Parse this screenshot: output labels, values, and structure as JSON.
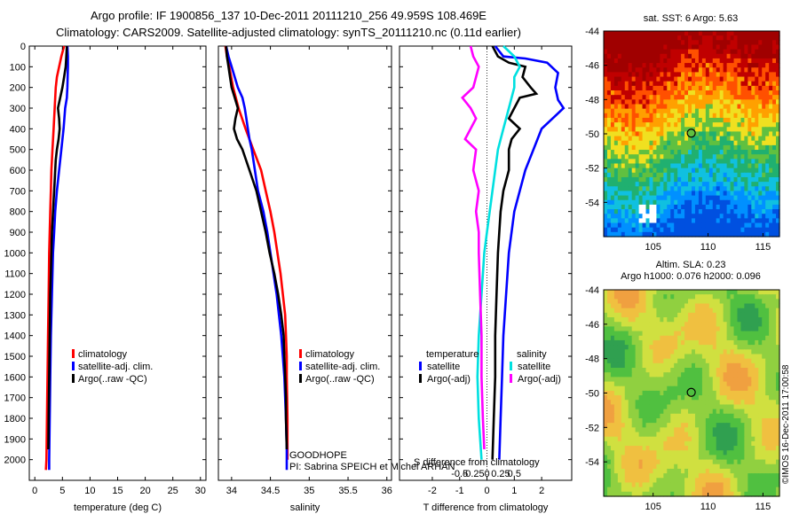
{
  "header": {
    "line1": "Argo profile: IF 1900856_137 10-Dec-2011 20111210_256 49.959S 108.469E",
    "line2": "Climatology: CARS2009. Satellite-adjusted climatology: synTS_20111210.nc (0.11d earlier)"
  },
  "chart_data": [
    {
      "id": "temperature",
      "type": "line",
      "xlabel": "temperature (deg C)",
      "ylabel": "",
      "xlim": [
        -1,
        31
      ],
      "ylim": [
        2100,
        0
      ],
      "y_reversed": true,
      "xticks": [
        0,
        5,
        10,
        15,
        20,
        25,
        30
      ],
      "yticks": [
        0,
        100,
        200,
        300,
        400,
        500,
        600,
        700,
        800,
        900,
        1000,
        1100,
        1200,
        1300,
        1400,
        1500,
        1600,
        1700,
        1800,
        1900,
        2000
      ],
      "legend": [
        "climatology",
        "satellite-adj. clim.",
        "Argo(..raw -QC)"
      ],
      "series": [
        {
          "name": "climatology",
          "color": "#ff0000",
          "points": [
            [
              5.3,
              0
            ],
            [
              4.8,
              50
            ],
            [
              4.4,
              100
            ],
            [
              4.0,
              150
            ],
            [
              3.8,
              200
            ],
            [
              3.6,
              300
            ],
            [
              3.4,
              400
            ],
            [
              3.2,
              500
            ],
            [
              3.0,
              600
            ],
            [
              2.9,
              700
            ],
            [
              2.8,
              800
            ],
            [
              2.7,
              900
            ],
            [
              2.6,
              1000
            ],
            [
              2.5,
              1200
            ],
            [
              2.4,
              1400
            ],
            [
              2.3,
              1600
            ],
            [
              2.2,
              1800
            ],
            [
              2.1,
              2000
            ],
            [
              2.0,
              2050
            ]
          ]
        },
        {
          "name": "satellite-adj. clim.",
          "color": "#0000ff",
          "points": [
            [
              5.9,
              0
            ],
            [
              6.0,
              50
            ],
            [
              6.0,
              100
            ],
            [
              5.9,
              200
            ],
            [
              5.8,
              250
            ],
            [
              5.5,
              300
            ],
            [
              5.2,
              400
            ],
            [
              4.8,
              500
            ],
            [
              4.4,
              600
            ],
            [
              4.0,
              700
            ],
            [
              3.7,
              800
            ],
            [
              3.5,
              900
            ],
            [
              3.3,
              1000
            ],
            [
              3.1,
              1200
            ],
            [
              2.9,
              1400
            ],
            [
              2.8,
              1600
            ],
            [
              2.7,
              1800
            ],
            [
              2.6,
              2000
            ],
            [
              2.6,
              2050
            ]
          ]
        },
        {
          "name": "Argo(..raw -QC)",
          "color": "#000000",
          "points": [
            [
              5.8,
              0
            ],
            [
              5.7,
              50
            ],
            [
              5.6,
              100
            ],
            [
              5.3,
              150
            ],
            [
              5.0,
              200
            ],
            [
              4.6,
              250
            ],
            [
              4.2,
              300
            ],
            [
              4.4,
              350
            ],
            [
              4.5,
              400
            ],
            [
              4.3,
              450
            ],
            [
              4.0,
              500
            ],
            [
              3.8,
              550
            ],
            [
              3.7,
              600
            ],
            [
              3.5,
              700
            ],
            [
              3.3,
              800
            ],
            [
              3.1,
              900
            ],
            [
              3.0,
              1000
            ],
            [
              2.9,
              1100
            ],
            [
              2.8,
              1200
            ],
            [
              2.7,
              1400
            ],
            [
              2.6,
              1600
            ],
            [
              2.5,
              1800
            ],
            [
              2.45,
              1950
            ]
          ]
        }
      ]
    },
    {
      "id": "salinity",
      "type": "line",
      "xlabel": "salinity",
      "ylabel": "",
      "xlim": [
        33.83,
        36.06
      ],
      "ylim": [
        2100,
        0
      ],
      "y_reversed": true,
      "xticks": [
        34,
        34.5,
        35,
        35.5,
        36
      ],
      "legend": [
        "climatology",
        "satellite-adj. clim.",
        "Argo(..raw -QC)"
      ],
      "series": [
        {
          "name": "climatology",
          "color": "#ff0000",
          "points": [
            [
              33.92,
              0
            ],
            [
              33.94,
              50
            ],
            [
              33.97,
              100
            ],
            [
              34.02,
              200
            ],
            [
              34.09,
              300
            ],
            [
              34.18,
              400
            ],
            [
              34.28,
              500
            ],
            [
              34.38,
              600
            ],
            [
              34.44,
              700
            ],
            [
              34.5,
              800
            ],
            [
              34.55,
              900
            ],
            [
              34.59,
              1000
            ],
            [
              34.63,
              1100
            ],
            [
              34.66,
              1200
            ],
            [
              34.69,
              1300
            ],
            [
              34.7,
              1400
            ],
            [
              34.71,
              1500
            ],
            [
              34.71,
              1600
            ],
            [
              34.72,
              1800
            ],
            [
              34.72,
              2000
            ]
          ]
        },
        {
          "name": "satellite-adj. clim.",
          "color": "#0000ff",
          "points": [
            [
              33.93,
              0
            ],
            [
              33.96,
              50
            ],
            [
              34.0,
              100
            ],
            [
              34.04,
              150
            ],
            [
              34.08,
              200
            ],
            [
              34.14,
              250
            ],
            [
              34.17,
              300
            ],
            [
              34.19,
              350
            ],
            [
              34.21,
              400
            ],
            [
              34.23,
              450
            ],
            [
              34.26,
              500
            ],
            [
              34.3,
              600
            ],
            [
              34.34,
              700
            ],
            [
              34.41,
              800
            ],
            [
              34.46,
              900
            ],
            [
              34.5,
              1000
            ],
            [
              34.54,
              1100
            ],
            [
              34.58,
              1200
            ],
            [
              34.61,
              1300
            ],
            [
              34.64,
              1400
            ],
            [
              34.66,
              1500
            ],
            [
              34.68,
              1600
            ],
            [
              34.69,
              1700
            ],
            [
              34.7,
              1800
            ],
            [
              34.71,
              1950
            ],
            [
              34.71,
              2050
            ]
          ]
        },
        {
          "name": "Argo(..raw -QC)",
          "color": "#000000",
          "points": [
            [
              33.93,
              0
            ],
            [
              33.94,
              50
            ],
            [
              33.96,
              100
            ],
            [
              33.98,
              150
            ],
            [
              34.0,
              200
            ],
            [
              34.04,
              250
            ],
            [
              34.08,
              300
            ],
            [
              34.05,
              350
            ],
            [
              34.03,
              400
            ],
            [
              34.07,
              450
            ],
            [
              34.14,
              500
            ],
            [
              34.23,
              600
            ],
            [
              34.32,
              700
            ],
            [
              34.38,
              800
            ],
            [
              34.44,
              900
            ],
            [
              34.49,
              1000
            ],
            [
              34.55,
              1100
            ],
            [
              34.6,
              1200
            ],
            [
              34.64,
              1300
            ],
            [
              34.67,
              1400
            ],
            [
              34.68,
              1500
            ],
            [
              34.69,
              1600
            ],
            [
              34.7,
              1700
            ],
            [
              34.7,
              1800
            ],
            [
              34.71,
              1950
            ]
          ]
        }
      ],
      "annotations": [
        "GOODHOPE",
        "PI: Sabrina SPEICH et Michel ARHAN"
      ]
    },
    {
      "id": "difference",
      "type": "line",
      "xlabel": "T difference from climatology",
      "x2label": "S difference from climatology",
      "xlim": [
        -3.2,
        3.1
      ],
      "ylim": [
        2100,
        0
      ],
      "y_reversed": true,
      "xticks": [
        -2,
        -1,
        0,
        1,
        2
      ],
      "x2ticks": [
        "-0.5",
        "-0.25",
        "0",
        "0.25",
        "0.5"
      ],
      "legend_headers": [
        "temperature",
        "salinity"
      ],
      "legend": [
        "satellite",
        "Argo(-adj)",
        "satellite",
        "Argo(-adj)"
      ],
      "series": [
        {
          "name": "satellite",
          "group": "temperature",
          "color": "#0000ff",
          "points": [
            [
              0.3,
              0
            ],
            [
              0.6,
              50
            ],
            [
              1.4,
              60
            ],
            [
              2.2,
              80
            ],
            [
              2.6,
              130
            ],
            [
              2.5,
              200
            ],
            [
              2.6,
              260
            ],
            [
              2.8,
              300
            ],
            [
              2.4,
              350
            ],
            [
              2.0,
              400
            ],
            [
              1.7,
              500
            ],
            [
              1.4,
              600
            ],
            [
              1.2,
              700
            ],
            [
              1.0,
              800
            ],
            [
              0.8,
              1000
            ],
            [
              0.7,
              1200
            ],
            [
              0.6,
              1400
            ],
            [
              0.55,
              1600
            ],
            [
              0.5,
              1800
            ],
            [
              0.45,
              2000
            ]
          ]
        },
        {
          "name": "Argo(-adj)",
          "group": "temperature",
          "color": "#000000",
          "points": [
            [
              0.2,
              0
            ],
            [
              0.4,
              50
            ],
            [
              0.8,
              80
            ],
            [
              1.4,
              100
            ],
            [
              1.3,
              150
            ],
            [
              1.6,
              200
            ],
            [
              1.8,
              230
            ],
            [
              1.2,
              250
            ],
            [
              1.0,
              300
            ],
            [
              0.8,
              350
            ],
            [
              1.2,
              400
            ],
            [
              0.9,
              450
            ],
            [
              0.8,
              500
            ],
            [
              0.8,
              600
            ],
            [
              0.6,
              700
            ],
            [
              0.5,
              800
            ],
            [
              0.45,
              900
            ],
            [
              0.4,
              1000
            ],
            [
              0.35,
              1200
            ],
            [
              0.3,
              1400
            ],
            [
              0.3,
              1600
            ],
            [
              0.25,
              1800
            ],
            [
              0.2,
              2000
            ]
          ]
        },
        {
          "name": "satellite",
          "group": "salinity",
          "color": "#00e0e0",
          "points": [
            [
              0.6,
              0
            ],
            [
              1.0,
              50
            ],
            [
              1.2,
              100
            ],
            [
              1.0,
              150
            ],
            [
              1.0,
              200
            ],
            [
              0.8,
              300
            ],
            [
              0.6,
              400
            ],
            [
              0.4,
              500
            ],
            [
              0.3,
              600
            ],
            [
              0.2,
              700
            ],
            [
              0.1,
              800
            ],
            [
              0.0,
              900
            ],
            [
              -0.1,
              1000
            ],
            [
              -0.2,
              1200
            ],
            [
              -0.3,
              1400
            ],
            [
              -0.35,
              1600
            ],
            [
              -0.3,
              1800
            ],
            [
              -0.2,
              2000
            ]
          ]
        },
        {
          "name": "Argo(-adj)",
          "group": "salinity",
          "color": "#ff00ff",
          "points": [
            [
              -0.6,
              0
            ],
            [
              -0.5,
              50
            ],
            [
              -0.3,
              100
            ],
            [
              -0.5,
              200
            ],
            [
              -0.9,
              250
            ],
            [
              -0.6,
              300
            ],
            [
              -0.4,
              350
            ],
            [
              -0.6,
              400
            ],
            [
              -0.8,
              450
            ],
            [
              -0.4,
              500
            ],
            [
              -0.5,
              600
            ],
            [
              -0.3,
              700
            ],
            [
              -0.4,
              800
            ],
            [
              -0.3,
              900
            ],
            [
              -0.3,
              1000
            ],
            [
              -0.25,
              1200
            ],
            [
              -0.2,
              1400
            ],
            [
              -0.2,
              1600
            ],
            [
              -0.15,
              1800
            ],
            [
              -0.1,
              1950
            ]
          ]
        }
      ]
    },
    {
      "id": "sst_map",
      "type": "heatmap",
      "title": "sat. SST: 6 Argo: 5.63",
      "xlim": [
        100.5,
        116.5
      ],
      "ylim": [
        -56,
        -44
      ],
      "xticks": [
        105,
        110,
        115
      ],
      "yticks": [
        -44,
        -46,
        -48,
        -50,
        -52,
        -54
      ],
      "marker": {
        "lon": 108.47,
        "lat": -49.96
      },
      "colors": [
        "#0050e0",
        "#0090ff",
        "#10c0e0",
        "#20b070",
        "#60c040",
        "#f0e020",
        "#ffa000",
        "#ff5000",
        "#c00000",
        "#a00000"
      ]
    },
    {
      "id": "sla_map",
      "type": "heatmap",
      "title_line1": "Altim. SLA: 0.23",
      "title_line2": "Argo h1000: 0.076 h2000: 0.096",
      "xlim": [
        100.5,
        116.5
      ],
      "ylim": [
        -56,
        -44
      ],
      "xticks": [
        105,
        110,
        115
      ],
      "yticks": [
        -44,
        -46,
        -48,
        -50,
        -52,
        -54
      ],
      "marker": {
        "lon": 108.47,
        "lat": -49.96
      },
      "colors": [
        "#30a050",
        "#50c040",
        "#90d040",
        "#d0e040",
        "#f0c040",
        "#f0a040"
      ]
    }
  ],
  "footer_stamp": "©IMOS 16-Dec-2011 17:00:58"
}
